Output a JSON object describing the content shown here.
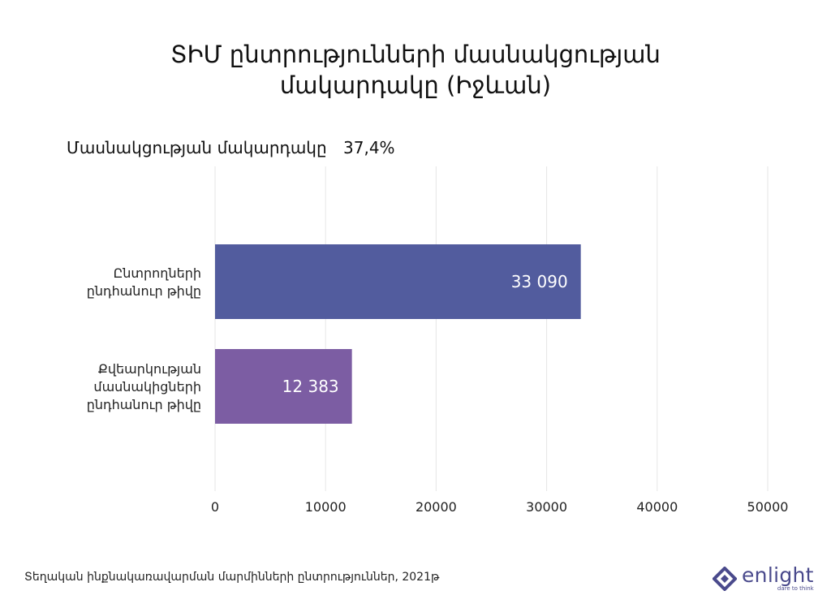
{
  "title_lines": [
    "ՏԻՄ ընտրությունների մասնակցության",
    "մակարդակը (Իջևան)"
  ],
  "participation": {
    "label": "Մասնակցության մակարդակը",
    "value": "37,4%"
  },
  "footer_source": "Տեղական ինքնակառավարման մարմինների ընտրություններ, 2021թ",
  "logo": {
    "name": "enlight",
    "tagline": "dare to think"
  },
  "colors": {
    "bar1": "#525c9e",
    "bar2": "#7c5da3",
    "grid": "#e6e6e6",
    "brand": "#4a4a8c"
  },
  "chart_data": {
    "type": "bar",
    "orientation": "horizontal",
    "categories": [
      [
        "Ընտրողների",
        "ընդհանուր թիվը"
      ],
      [
        "Քվեարկության",
        "մասնակիցների",
        "ընդհանուր թիվը"
      ]
    ],
    "values": [
      33090,
      12383
    ],
    "value_labels": [
      "33 090",
      "12 383"
    ],
    "xlim": [
      0,
      50000
    ],
    "xticks": [
      0,
      10000,
      20000,
      30000,
      40000,
      50000
    ],
    "xtick_labels": [
      "0",
      "10000",
      "20000",
      "30000",
      "40000",
      "50000"
    ],
    "grid": true
  }
}
